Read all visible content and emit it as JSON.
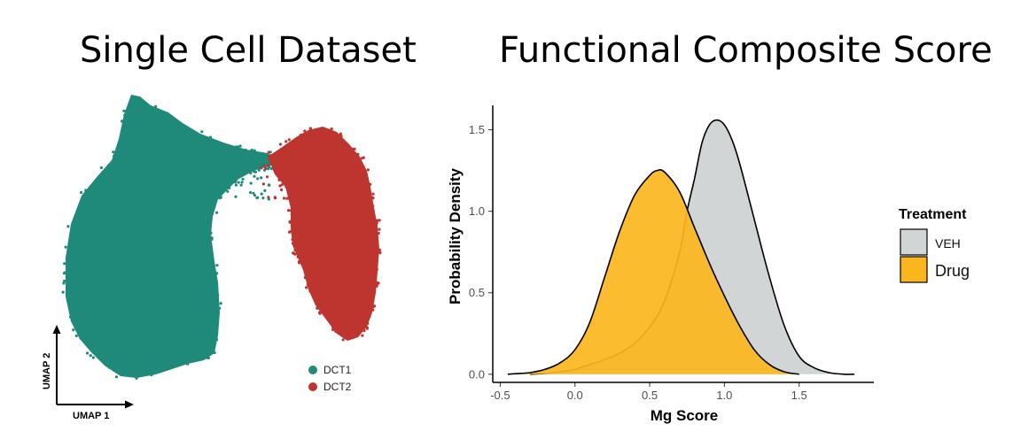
{
  "titles": {
    "left": "Single Cell Dataset",
    "right": "Functional Composite Score"
  },
  "umap": {
    "xlabel": "UMAP 1",
    "ylabel": "UMAP 2",
    "clusters": [
      {
        "name": "DCT1",
        "color": "#1f8a7a"
      },
      {
        "name": "DCT2",
        "color": "#be3530"
      }
    ]
  },
  "chart_data": {
    "type": "area",
    "xlabel": "Mg Score",
    "ylabel": "Probability Density",
    "xlim": [
      -0.55,
      2.0
    ],
    "ylim": [
      -0.05,
      1.65
    ],
    "xticks": [
      -0.5,
      0.0,
      0.5,
      1.0,
      1.5
    ],
    "xtick_labels": [
      "-0.5",
      "0.0",
      "0.5",
      "1.0",
      "1.5"
    ],
    "yticks": [
      0.0,
      0.5,
      1.0,
      1.5
    ],
    "ytick_labels": [
      "0.0",
      "0.5",
      "1.0",
      "1.5"
    ],
    "grid": false,
    "legend": {
      "title": "Treatment",
      "placement": "right"
    },
    "series": [
      {
        "name": "VEH",
        "color": "#d1d5d5",
        "x": [
          -0.3,
          -0.2,
          -0.1,
          0.0,
          0.1,
          0.2,
          0.3,
          0.4,
          0.5,
          0.6,
          0.7,
          0.75,
          0.8,
          0.85,
          0.9,
          0.95,
          1.0,
          1.05,
          1.1,
          1.2,
          1.3,
          1.4,
          1.5,
          1.6,
          1.7,
          1.8,
          1.87
        ],
        "values": [
          0.0,
          0.005,
          0.015,
          0.03,
          0.06,
          0.09,
          0.13,
          0.19,
          0.29,
          0.45,
          0.75,
          1.0,
          1.2,
          1.42,
          1.53,
          1.56,
          1.53,
          1.44,
          1.3,
          0.95,
          0.6,
          0.3,
          0.11,
          0.04,
          0.01,
          0.0,
          0.0
        ]
      },
      {
        "name": "Drug",
        "color": "#fbb61e",
        "x": [
          -0.45,
          -0.4,
          -0.3,
          -0.2,
          -0.1,
          0.0,
          0.1,
          0.2,
          0.3,
          0.4,
          0.5,
          0.55,
          0.6,
          0.7,
          0.8,
          0.9,
          1.0,
          1.1,
          1.2,
          1.3,
          1.4,
          1.5
        ],
        "values": [
          0.0,
          0.003,
          0.01,
          0.03,
          0.07,
          0.15,
          0.32,
          0.6,
          0.88,
          1.1,
          1.22,
          1.25,
          1.24,
          1.12,
          0.9,
          0.68,
          0.48,
          0.3,
          0.15,
          0.06,
          0.015,
          0.0
        ]
      }
    ]
  }
}
